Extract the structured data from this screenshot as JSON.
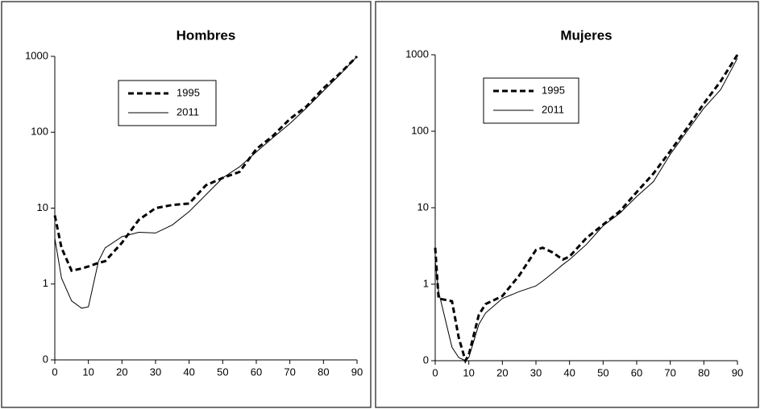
{
  "chart_data": [
    {
      "type": "line",
      "title": "Hombres",
      "log_scale": true,
      "x": [
        0,
        2,
        5,
        8,
        10,
        13,
        15,
        20,
        25,
        30,
        35,
        40,
        45,
        50,
        55,
        60,
        65,
        70,
        75,
        80,
        85,
        90
      ],
      "series": [
        {
          "name": "1995",
          "color": "#000000",
          "style": "dashed",
          "values": [
            8,
            3,
            1.5,
            1.6,
            1.7,
            1.9,
            2,
            3.5,
            7,
            10,
            11,
            11.5,
            20,
            25,
            30,
            60,
            90,
            150,
            220,
            380,
            600,
            1000
          ]
        },
        {
          "name": "2011",
          "color": "#000000",
          "style": "solid",
          "values": [
            4,
            1.2,
            0.6,
            0.48,
            0.5,
            2,
            3,
            4.2,
            4.8,
            4.7,
            6,
            9,
            15,
            25,
            35,
            55,
            85,
            130,
            210,
            350,
            580,
            1000
          ]
        }
      ],
      "xlim": [
        0,
        90
      ],
      "xticks": [
        0,
        10,
        20,
        30,
        40,
        50,
        60,
        70,
        80,
        90
      ],
      "ylim": [
        0.1,
        1000
      ],
      "yticks": [
        {
          "value": 0.1,
          "label": "0"
        },
        1,
        10,
        100,
        1000
      ]
    },
    {
      "type": "line",
      "title": "Mujeres",
      "log_scale": true,
      "x": [
        0,
        1,
        5,
        7,
        9,
        10,
        13,
        15,
        20,
        25,
        30,
        32,
        35,
        38,
        40,
        45,
        50,
        55,
        60,
        65,
        70,
        75,
        80,
        85,
        90
      ],
      "series": [
        {
          "name": "1995",
          "color": "#000000",
          "style": "dashed",
          "values": [
            3,
            0.65,
            0.6,
            0.2,
            0.1,
            0.12,
            0.4,
            0.55,
            0.7,
            1.3,
            2.8,
            3,
            2.6,
            2.1,
            2.3,
            4,
            6,
            9,
            16,
            28,
            55,
            110,
            230,
            450,
            1000
          ]
        },
        {
          "name": "2011",
          "color": "#000000",
          "style": "solid",
          "values": [
            2,
            0.8,
            0.15,
            0.11,
            0.1,
            0.11,
            0.3,
            0.42,
            0.65,
            0.8,
            0.95,
            1.1,
            1.4,
            1.8,
            2.1,
            3.3,
            5.8,
            8.5,
            14,
            22,
            50,
            100,
            200,
            350,
            900
          ]
        }
      ],
      "xlim": [
        0,
        90
      ],
      "xticks": [
        0,
        10,
        20,
        30,
        40,
        50,
        60,
        70,
        80,
        90
      ],
      "ylim": [
        0.1,
        1000
      ],
      "yticks": [
        {
          "value": 0.1,
          "label": "0"
        },
        1,
        10,
        100,
        1000
      ]
    }
  ]
}
